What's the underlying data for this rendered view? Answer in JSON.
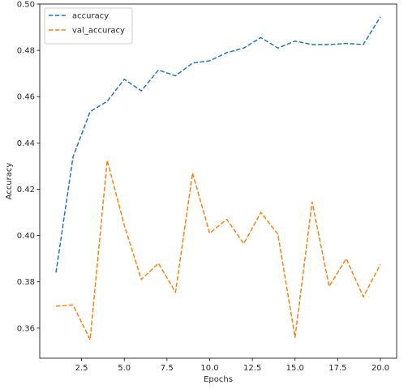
{
  "chart_data": {
    "type": "line",
    "title": "",
    "xlabel": "Epochs",
    "ylabel": "Accuracy",
    "xlim": [
      0.05,
      20.95
    ],
    "ylim": [
      0.347,
      0.5
    ],
    "x_ticks": [
      2.5,
      5.0,
      7.5,
      10.0,
      12.5,
      15.0,
      17.5,
      20.0
    ],
    "x_tick_labels": [
      "2.5",
      "5.0",
      "7.5",
      "10.0",
      "12.5",
      "15.0",
      "17.5",
      "20.0"
    ],
    "y_ticks": [
      0.36,
      0.38,
      0.4,
      0.42,
      0.44,
      0.46,
      0.48,
      0.5
    ],
    "y_tick_labels": [
      "0.36",
      "0.38",
      "0.40",
      "0.42",
      "0.44",
      "0.46",
      "0.48",
      "0.50"
    ],
    "grid": false,
    "legend_position": "top-left",
    "x": [
      1,
      2,
      3,
      4,
      5,
      6,
      7,
      8,
      9,
      10,
      11,
      12,
      13,
      14,
      15,
      16,
      17,
      18,
      19,
      20
    ],
    "series": [
      {
        "name": "accuracy",
        "color": "#1f77b4",
        "line_style": "dashed",
        "values": [
          0.384,
          0.434,
          0.4535,
          0.458,
          0.4675,
          0.4625,
          0.4715,
          0.469,
          0.4745,
          0.4755,
          0.479,
          0.481,
          0.4855,
          0.481,
          0.484,
          0.4825,
          0.4825,
          0.483,
          0.4825,
          0.4945
        ]
      },
      {
        "name": "val_accuracy",
        "color": "#ff7f0e",
        "line_style": "dashed",
        "values": [
          0.3695,
          0.37,
          0.355,
          0.4325,
          0.4045,
          0.381,
          0.388,
          0.3755,
          0.427,
          0.401,
          0.407,
          0.3965,
          0.41,
          0.4005,
          0.356,
          0.4145,
          0.378,
          0.39,
          0.3735,
          0.3875
        ]
      }
    ]
  }
}
